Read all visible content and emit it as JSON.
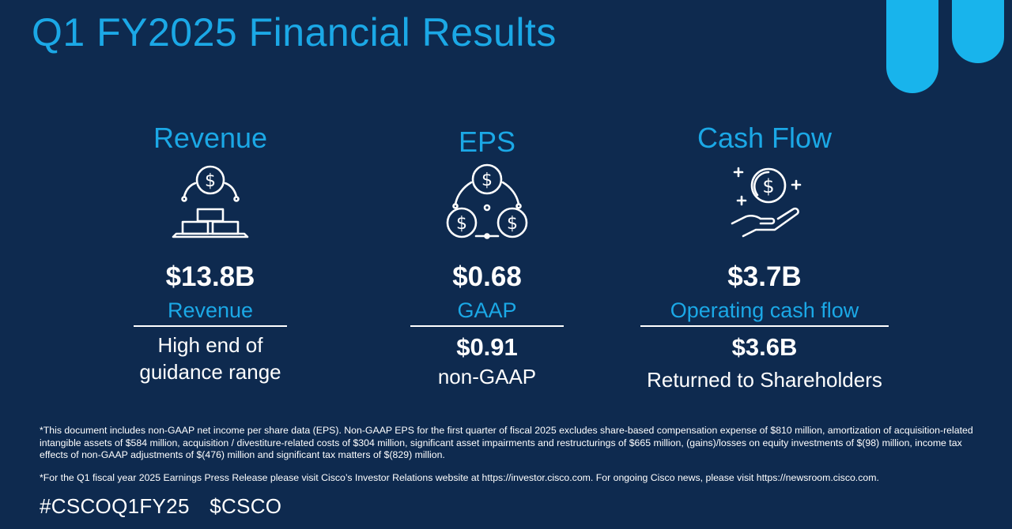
{
  "page": {
    "title": "Q1 FY2025 Financial Results"
  },
  "colors": {
    "background": "#0e2a4f",
    "accent": "#1ba8e6",
    "deco": "#18b4ec",
    "text": "#ffffff"
  },
  "columns": [
    {
      "heading": "Revenue",
      "icon": "gold-bars-coin-icon",
      "value": "$13.8B",
      "value_label": "Revenue",
      "secondary_value": "",
      "description": [
        "High end of",
        "guidance range"
      ]
    },
    {
      "heading": "EPS",
      "icon": "three-coins-cycle-icon",
      "value": "$0.68",
      "value_label": "GAAP",
      "secondary_value": "$0.91",
      "description": [
        "non-GAAP"
      ]
    },
    {
      "heading": "Cash Flow",
      "icon": "hand-holding-coin-icon",
      "value": "$3.7B",
      "value_label": "Operating cash flow",
      "secondary_value": "$3.6B",
      "description": [
        "Returned to Shareholders"
      ]
    }
  ],
  "footnotes": {
    "note1": "*This document includes non-GAAP net income per share data (EPS). Non-GAAP EPS for the first quarter of fiscal 2025 excludes share-based compensation expense of $810 million, amortization of acquisition-related intangible assets of $584 million, acquisition / divestiture-related costs of $304 million, significant asset impairments and restructurings of $665 million, (gains)/losses on equity investments of $(98) million, income tax effects of non-GAAP adjustments of $(476) million and significant tax matters of $(829) million.",
    "note2": "*For the Q1 fiscal year 2025 Earnings Press Release please visit Cisco’s Investor Relations website at https://investor.cisco.com. For ongoing Cisco news, please visit https://newsroom.cisco.com."
  },
  "hashtags": {
    "tag1": "#CSCOQ1FY25",
    "tag2": "$CSCO"
  }
}
